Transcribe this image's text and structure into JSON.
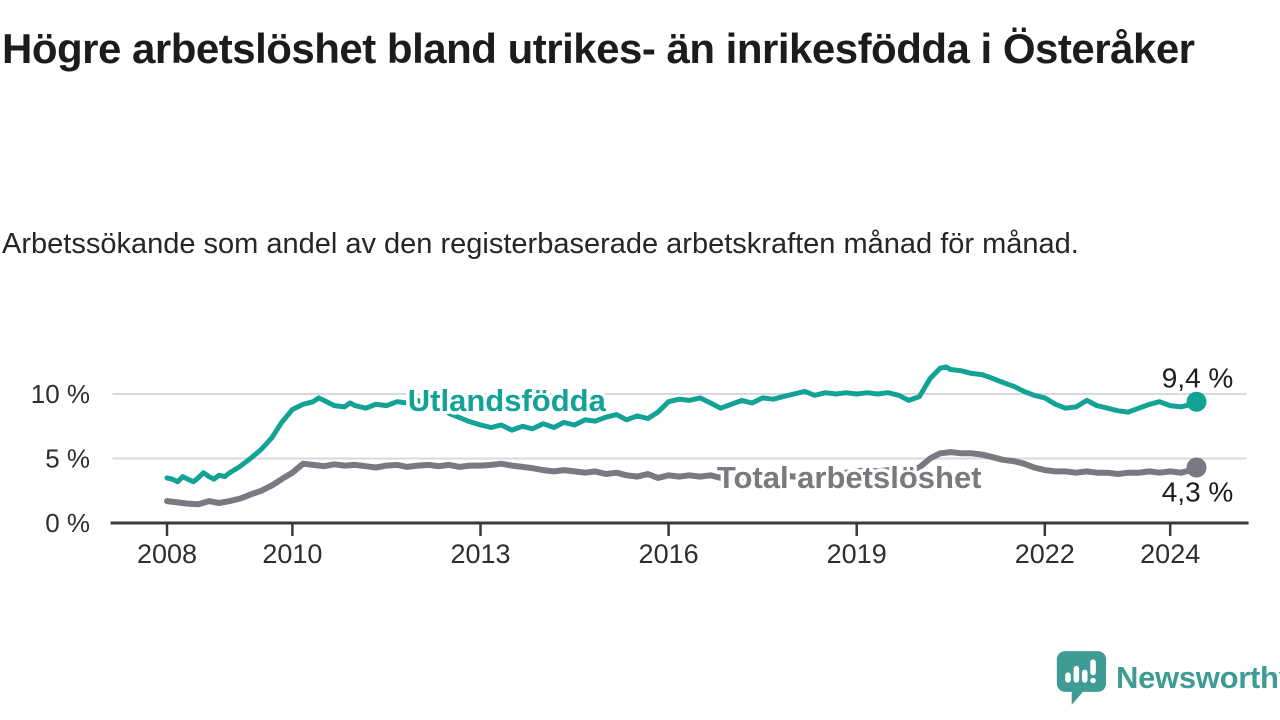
{
  "chart_data": {
    "type": "line",
    "title": "Högre arbetslöshet bland utrikes- än inrikesfödda i Österåker",
    "subtitle": "Arbetssökande som andel av den registerbaserade arbetskraften månad för månad.",
    "unit": "%",
    "x_ticks": [
      2008,
      2010,
      2013,
      2016,
      2019,
      2022,
      2024
    ],
    "y_ticks": [
      0,
      5,
      10
    ],
    "y_tick_labels": [
      "0 %",
      "5 %",
      "10 %"
    ],
    "xlim": [
      2007.1,
      2025.25
    ],
    "ylim": [
      0,
      13.5
    ],
    "grid": "horizontal-only",
    "legend_position": "inline-on-line",
    "series": [
      {
        "name": "Utlandsfödda",
        "color": "#13a296",
        "label_at": {
          "year": 2013.42,
          "value": 8.7
        },
        "end_label": "9,4 %",
        "end_value": 9.4,
        "end_label_position": "above",
        "points": [
          [
            2008.0,
            3.5
          ],
          [
            2008.08,
            3.4
          ],
          [
            2008.17,
            3.2
          ],
          [
            2008.25,
            3.6
          ],
          [
            2008.33,
            3.4
          ],
          [
            2008.42,
            3.2
          ],
          [
            2008.5,
            3.5
          ],
          [
            2008.58,
            3.9
          ],
          [
            2008.67,
            3.6
          ],
          [
            2008.75,
            3.4
          ],
          [
            2008.83,
            3.7
          ],
          [
            2008.92,
            3.6
          ],
          [
            2009.0,
            3.9
          ],
          [
            2009.17,
            4.4
          ],
          [
            2009.33,
            5.0
          ],
          [
            2009.5,
            5.7
          ],
          [
            2009.67,
            6.6
          ],
          [
            2009.83,
            7.8
          ],
          [
            2010.0,
            8.8
          ],
          [
            2010.17,
            9.2
          ],
          [
            2010.33,
            9.4
          ],
          [
            2010.42,
            9.7
          ],
          [
            2010.5,
            9.5
          ],
          [
            2010.67,
            9.1
          ],
          [
            2010.83,
            9.0
          ],
          [
            2010.92,
            9.3
          ],
          [
            2011.0,
            9.1
          ],
          [
            2011.17,
            8.9
          ],
          [
            2011.33,
            9.2
          ],
          [
            2011.5,
            9.1
          ],
          [
            2011.67,
            9.4
          ],
          [
            2011.83,
            9.3
          ],
          [
            2012.0,
            9.5
          ],
          [
            2012.2,
            9.1
          ],
          [
            2012.4,
            8.7
          ],
          [
            2012.6,
            8.3
          ],
          [
            2012.8,
            7.9
          ],
          [
            2013.0,
            7.6
          ],
          [
            2013.17,
            7.4
          ],
          [
            2013.33,
            7.6
          ],
          [
            2013.5,
            7.2
          ],
          [
            2013.67,
            7.5
          ],
          [
            2013.83,
            7.3
          ],
          [
            2014.0,
            7.7
          ],
          [
            2014.17,
            7.4
          ],
          [
            2014.33,
            7.8
          ],
          [
            2014.5,
            7.6
          ],
          [
            2014.67,
            8.0
          ],
          [
            2014.83,
            7.9
          ],
          [
            2015.0,
            8.2
          ],
          [
            2015.17,
            8.4
          ],
          [
            2015.33,
            8.0
          ],
          [
            2015.5,
            8.3
          ],
          [
            2015.67,
            8.1
          ],
          [
            2015.83,
            8.6
          ],
          [
            2016.0,
            9.4
          ],
          [
            2016.17,
            9.6
          ],
          [
            2016.33,
            9.5
          ],
          [
            2016.5,
            9.7
          ],
          [
            2016.67,
            9.3
          ],
          [
            2016.83,
            8.9
          ],
          [
            2017.0,
            9.2
          ],
          [
            2017.17,
            9.5
          ],
          [
            2017.33,
            9.3
          ],
          [
            2017.5,
            9.7
          ],
          [
            2017.67,
            9.6
          ],
          [
            2017.83,
            9.8
          ],
          [
            2018.0,
            10.0
          ],
          [
            2018.17,
            10.2
          ],
          [
            2018.33,
            9.9
          ],
          [
            2018.5,
            10.1
          ],
          [
            2018.67,
            10.0
          ],
          [
            2018.83,
            10.1
          ],
          [
            2019.0,
            10.0
          ],
          [
            2019.17,
            10.1
          ],
          [
            2019.33,
            10.0
          ],
          [
            2019.5,
            10.1
          ],
          [
            2019.67,
            9.9
          ],
          [
            2019.83,
            9.5
          ],
          [
            2020.0,
            9.8
          ],
          [
            2020.17,
            11.2
          ],
          [
            2020.33,
            12.0
          ],
          [
            2020.42,
            12.1
          ],
          [
            2020.5,
            11.9
          ],
          [
            2020.67,
            11.8
          ],
          [
            2020.83,
            11.6
          ],
          [
            2021.0,
            11.5
          ],
          [
            2021.17,
            11.2
          ],
          [
            2021.33,
            10.9
          ],
          [
            2021.5,
            10.6
          ],
          [
            2021.67,
            10.2
          ],
          [
            2021.83,
            9.9
          ],
          [
            2022.0,
            9.7
          ],
          [
            2022.17,
            9.2
          ],
          [
            2022.33,
            8.9
          ],
          [
            2022.5,
            9.0
          ],
          [
            2022.67,
            9.5
          ],
          [
            2022.83,
            9.1
          ],
          [
            2023.0,
            8.9
          ],
          [
            2023.17,
            8.7
          ],
          [
            2023.33,
            8.6
          ],
          [
            2023.5,
            8.9
          ],
          [
            2023.67,
            9.2
          ],
          [
            2023.83,
            9.4
          ],
          [
            2024.0,
            9.1
          ],
          [
            2024.17,
            9.0
          ],
          [
            2024.33,
            9.2
          ],
          [
            2024.42,
            9.4
          ]
        ]
      },
      {
        "name": "Total arbetslöshet",
        "color": "#7a7880",
        "label_at": {
          "year": 2018.88,
          "value": 2.72
        },
        "end_label": "4,3 %",
        "end_value": 4.3,
        "end_label_position": "below",
        "points": [
          [
            2008.0,
            1.7
          ],
          [
            2008.17,
            1.6
          ],
          [
            2008.33,
            1.5
          ],
          [
            2008.5,
            1.45
          ],
          [
            2008.67,
            1.7
          ],
          [
            2008.83,
            1.55
          ],
          [
            2009.0,
            1.7
          ],
          [
            2009.17,
            1.9
          ],
          [
            2009.33,
            2.2
          ],
          [
            2009.5,
            2.5
          ],
          [
            2009.67,
            2.9
          ],
          [
            2009.83,
            3.4
          ],
          [
            2010.0,
            3.9
          ],
          [
            2010.17,
            4.6
          ],
          [
            2010.33,
            4.5
          ],
          [
            2010.5,
            4.4
          ],
          [
            2010.67,
            4.55
          ],
          [
            2010.83,
            4.45
          ],
          [
            2011.0,
            4.5
          ],
          [
            2011.17,
            4.4
          ],
          [
            2011.33,
            4.3
          ],
          [
            2011.5,
            4.45
          ],
          [
            2011.67,
            4.5
          ],
          [
            2011.83,
            4.35
          ],
          [
            2012.0,
            4.45
          ],
          [
            2012.17,
            4.5
          ],
          [
            2012.33,
            4.4
          ],
          [
            2012.5,
            4.5
          ],
          [
            2012.67,
            4.35
          ],
          [
            2012.83,
            4.45
          ],
          [
            2013.0,
            4.45
          ],
          [
            2013.17,
            4.5
          ],
          [
            2013.33,
            4.6
          ],
          [
            2013.5,
            4.45
          ],
          [
            2013.67,
            4.35
          ],
          [
            2013.83,
            4.25
          ],
          [
            2014.0,
            4.1
          ],
          [
            2014.17,
            4.0
          ],
          [
            2014.33,
            4.1
          ],
          [
            2014.5,
            4.0
          ],
          [
            2014.67,
            3.9
          ],
          [
            2014.83,
            4.0
          ],
          [
            2015.0,
            3.8
          ],
          [
            2015.17,
            3.9
          ],
          [
            2015.33,
            3.7
          ],
          [
            2015.5,
            3.6
          ],
          [
            2015.67,
            3.8
          ],
          [
            2015.83,
            3.5
          ],
          [
            2016.0,
            3.7
          ],
          [
            2016.17,
            3.6
          ],
          [
            2016.33,
            3.7
          ],
          [
            2016.5,
            3.6
          ],
          [
            2016.67,
            3.7
          ],
          [
            2016.83,
            3.5
          ],
          [
            2017.0,
            3.6
          ],
          [
            2017.17,
            3.5
          ],
          [
            2017.33,
            3.6
          ],
          [
            2017.5,
            3.5
          ],
          [
            2017.67,
            3.6
          ],
          [
            2017.83,
            3.7
          ],
          [
            2018.0,
            3.6
          ],
          [
            2018.17,
            3.7
          ],
          [
            2018.33,
            3.8
          ],
          [
            2018.5,
            3.7
          ],
          [
            2018.67,
            3.8
          ],
          [
            2018.83,
            3.9
          ],
          [
            2019.0,
            4.0
          ],
          [
            2019.17,
            4.1
          ],
          [
            2019.33,
            4.0
          ],
          [
            2019.5,
            4.1
          ],
          [
            2019.67,
            4.2
          ],
          [
            2019.83,
            4.1
          ],
          [
            2020.0,
            4.3
          ],
          [
            2020.17,
            5.0
          ],
          [
            2020.33,
            5.4
          ],
          [
            2020.5,
            5.5
          ],
          [
            2020.67,
            5.4
          ],
          [
            2020.83,
            5.4
          ],
          [
            2021.0,
            5.3
          ],
          [
            2021.17,
            5.1
          ],
          [
            2021.33,
            4.9
          ],
          [
            2021.5,
            4.8
          ],
          [
            2021.67,
            4.6
          ],
          [
            2021.83,
            4.3
          ],
          [
            2022.0,
            4.1
          ],
          [
            2022.17,
            4.0
          ],
          [
            2022.33,
            4.0
          ],
          [
            2022.5,
            3.9
          ],
          [
            2022.67,
            4.0
          ],
          [
            2022.83,
            3.9
          ],
          [
            2023.0,
            3.9
          ],
          [
            2023.17,
            3.8
          ],
          [
            2023.33,
            3.9
          ],
          [
            2023.5,
            3.9
          ],
          [
            2023.67,
            4.0
          ],
          [
            2023.83,
            3.9
          ],
          [
            2024.0,
            4.0
          ],
          [
            2024.17,
            3.9
          ],
          [
            2024.33,
            4.1
          ],
          [
            2024.42,
            4.3
          ]
        ]
      }
    ]
  },
  "branding": {
    "name": "Newsworthy",
    "logo_icon": "speech-bubble-bar-chart-icon",
    "accent_color": "#3e9c94"
  }
}
